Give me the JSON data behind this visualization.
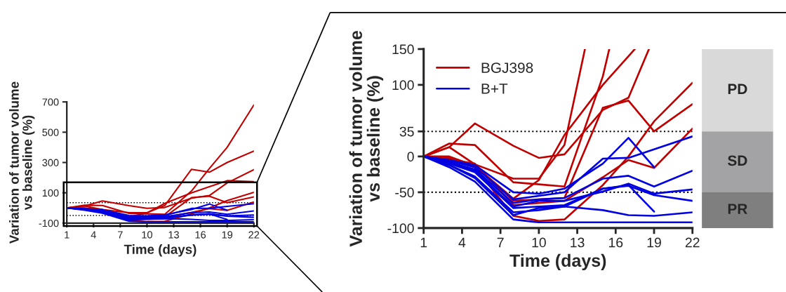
{
  "chart_data": [
    {
      "type": "line",
      "xlabel": "Time (days)",
      "ylabel": "Variation of tumor volume\nvs baseline (%)",
      "x": [
        1,
        3,
        5,
        8,
        10,
        12,
        15,
        17,
        19,
        22
      ],
      "xlim": [
        1,
        22
      ],
      "xticks": [
        1,
        4,
        7,
        10,
        13,
        16,
        19,
        22
      ],
      "ylim": [
        -100,
        700
      ],
      "yticks": [
        -100,
        100,
        300,
        500,
        700
      ],
      "grid": false,
      "legend": false,
      "marker": "none",
      "line_style": "solid",
      "ref_lines": [
        {
          "axis": "y",
          "value": 35,
          "line_style": "dotted"
        },
        {
          "axis": "y",
          "value": -50,
          "line_style": "dotted"
        }
      ],
      "series": [
        {
          "color": "#c00000",
          "values": [
            0,
            13,
            -11,
            -31,
            -31,
            16,
            255,
            236,
            300,
            375
          ]
        },
        {
          "color": "#c00000",
          "values": [
            0,
            18,
            16,
            -36,
            -39,
            -42,
            112,
            260,
            400,
            680
          ]
        },
        {
          "color": "#c00000",
          "values": [
            0,
            0,
            -13,
            -59,
            -33,
            30,
            100,
            140,
            180,
            174
          ]
        },
        {
          "color": "#c00000",
          "values": [
            0,
            13,
            46,
            15,
            -2,
            3,
            65,
            82,
            165,
            253
          ]
        },
        {
          "color": "#c00000",
          "values": [
            0,
            -6,
            -12,
            -62,
            -60,
            -58,
            68,
            78,
            35,
            73
          ]
        },
        {
          "color": "#c00000",
          "values": [
            0,
            -2,
            -15,
            -83,
            -90,
            -88,
            -40,
            0,
            49,
            103
          ]
        },
        {
          "color": "#c00000",
          "values": [
            0,
            -4,
            -10,
            -68,
            -65,
            -62,
            -29,
            -5,
            -16,
            39
          ]
        },
        {
          "color": "#0000e0",
          "values": [
            0,
            -5,
            -12,
            -50,
            -52,
            -45,
            -10,
            26,
            -15,
            null
          ]
        },
        {
          "color": "#0000e0",
          "values": [
            0,
            -6,
            -15,
            -60,
            -55,
            -50,
            -3,
            -2,
            10,
            28
          ]
        },
        {
          "color": "#0000e0",
          "values": [
            0,
            -8,
            -18,
            -65,
            -60,
            -58,
            -31,
            -27,
            -42,
            -20
          ]
        },
        {
          "color": "#0000e0",
          "values": [
            0,
            -8,
            -20,
            -70,
            -62,
            -62,
            -49,
            -38,
            -52,
            -46
          ]
        },
        {
          "color": "#0000e0",
          "values": [
            0,
            -10,
            -22,
            -72,
            -70,
            -68,
            -45,
            -41,
            -54,
            -62
          ]
        },
        {
          "color": "#0000e0",
          "values": [
            0,
            -12,
            -28,
            -78,
            -75,
            -70,
            -45,
            -40,
            -77,
            null
          ]
        },
        {
          "color": "#0000e0",
          "values": [
            0,
            -12,
            -30,
            -82,
            -72,
            -70,
            -75,
            -82,
            -83,
            -78
          ]
        },
        {
          "color": "#0000e0",
          "values": [
            0,
            -15,
            -35,
            -88,
            -92,
            -92,
            -92,
            -92,
            -92,
            -92
          ]
        }
      ]
    },
    {
      "type": "line",
      "xlabel": "Time (days)",
      "ylabel": "Variation of tumor volume\nvs baseline (%)",
      "x": [
        1,
        3,
        5,
        8,
        10,
        12,
        15,
        17,
        19,
        22
      ],
      "xlim": [
        1,
        22
      ],
      "xticks": [
        1,
        4,
        7,
        10,
        13,
        16,
        19,
        22
      ],
      "ylim": [
        -100,
        150
      ],
      "yticks": [
        -100,
        -50,
        0,
        35,
        100,
        150
      ],
      "grid": false,
      "legend": "top left",
      "marker": "none",
      "line_style": "solid",
      "ref_lines": [
        {
          "axis": "y",
          "value": 35,
          "line_style": "dotted"
        },
        {
          "axis": "y",
          "value": -50,
          "line_style": "dotted"
        }
      ],
      "annotations": [
        "PD",
        "SD",
        "PR"
      ],
      "series": [
        {
          "name": "BGJ398",
          "color": "#c00000",
          "x": [
            1,
            3,
            5,
            8,
            10,
            12,
            13.6
          ],
          "values": [
            0,
            13,
            -11,
            -31,
            -31,
            16,
            150
          ]
        },
        {
          "color": "#c00000",
          "x": [
            1,
            3,
            5,
            8,
            10,
            12,
            15,
            15.5
          ],
          "values": [
            0,
            18,
            16,
            -36,
            -39,
            -42,
            112,
            150
          ]
        },
        {
          "color": "#c00000",
          "x": [
            1,
            3,
            5,
            8,
            10,
            12,
            15,
            17,
            17.5
          ],
          "values": [
            0,
            0,
            -13,
            -59,
            -33,
            30,
            100,
            140,
            150
          ]
        },
        {
          "color": "#c00000",
          "x": [
            1,
            3,
            5,
            8,
            10,
            12,
            15,
            17,
            18.6
          ],
          "values": [
            0,
            13,
            46,
            15,
            -2,
            3,
            65,
            82,
            150
          ]
        },
        {
          "color": "#c00000",
          "values": [
            0,
            -6,
            -12,
            -62,
            -60,
            -58,
            68,
            78,
            35,
            73
          ]
        },
        {
          "color": "#c00000",
          "values": [
            0,
            -2,
            -15,
            -83,
            -90,
            -88,
            -40,
            0,
            49,
            103
          ]
        },
        {
          "color": "#c00000",
          "values": [
            0,
            -4,
            -10,
            -68,
            -65,
            -62,
            -29,
            -5,
            -16,
            39
          ]
        },
        {
          "name": "B+T",
          "color": "#0000e0",
          "values": [
            0,
            -5,
            -12,
            -50,
            -52,
            -45,
            -10,
            26,
            -15,
            null
          ]
        },
        {
          "color": "#0000e0",
          "values": [
            0,
            -6,
            -15,
            -60,
            -55,
            -50,
            -3,
            -2,
            10,
            28
          ]
        },
        {
          "color": "#0000e0",
          "values": [
            0,
            -8,
            -18,
            -65,
            -60,
            -58,
            -31,
            -27,
            -42,
            -20
          ]
        },
        {
          "color": "#0000e0",
          "values": [
            0,
            -8,
            -20,
            -70,
            -62,
            -62,
            -49,
            -38,
            -52,
            -46
          ]
        },
        {
          "color": "#0000e0",
          "values": [
            0,
            -10,
            -22,
            -72,
            -70,
            -68,
            -45,
            -41,
            -54,
            -62
          ]
        },
        {
          "color": "#0000e0",
          "values": [
            0,
            -12,
            -28,
            -78,
            -75,
            -70,
            -45,
            -40,
            -77,
            null
          ]
        },
        {
          "color": "#0000e0",
          "values": [
            0,
            -12,
            -30,
            -82,
            -72,
            -70,
            -75,
            -82,
            -83,
            -78
          ]
        },
        {
          "color": "#0000e0",
          "values": [
            0,
            -15,
            -35,
            -88,
            -92,
            -92,
            -92,
            -92,
            -92,
            -92
          ]
        }
      ]
    }
  ]
}
